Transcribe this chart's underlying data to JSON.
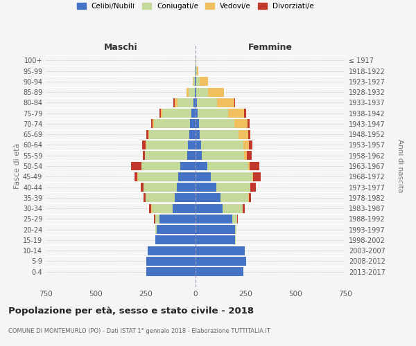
{
  "age_groups": [
    "0-4",
    "5-9",
    "10-14",
    "15-19",
    "20-24",
    "25-29",
    "30-34",
    "35-39",
    "40-44",
    "45-49",
    "50-54",
    "55-59",
    "60-64",
    "65-69",
    "70-74",
    "75-79",
    "80-84",
    "85-89",
    "90-94",
    "95-99",
    "100+"
  ],
  "birth_years": [
    "2013-2017",
    "2008-2012",
    "2003-2007",
    "1998-2002",
    "1993-1997",
    "1988-1992",
    "1983-1987",
    "1978-1982",
    "1973-1977",
    "1968-1972",
    "1963-1967",
    "1958-1962",
    "1953-1957",
    "1948-1952",
    "1943-1947",
    "1938-1942",
    "1933-1937",
    "1928-1932",
    "1923-1927",
    "1918-1922",
    "≤ 1917"
  ],
  "maschi": {
    "celibi": [
      245,
      248,
      240,
      200,
      195,
      180,
      115,
      105,
      95,
      88,
      75,
      42,
      38,
      32,
      28,
      20,
      10,
      5,
      2,
      1,
      0
    ],
    "coniugati": [
      0,
      0,
      0,
      3,
      5,
      22,
      105,
      145,
      165,
      200,
      195,
      210,
      210,
      200,
      180,
      145,
      80,
      30,
      8,
      2,
      0
    ],
    "vedovi": [
      0,
      0,
      0,
      0,
      0,
      1,
      1,
      1,
      2,
      2,
      2,
      3,
      3,
      5,
      8,
      10,
      15,
      10,
      5,
      0,
      0
    ],
    "divorziati": [
      0,
      0,
      0,
      0,
      0,
      5,
      10,
      10,
      12,
      15,
      50,
      10,
      15,
      8,
      5,
      5,
      5,
      0,
      0,
      0,
      0
    ]
  },
  "femmine": {
    "nubili": [
      240,
      252,
      248,
      198,
      198,
      185,
      135,
      125,
      105,
      78,
      58,
      32,
      28,
      22,
      18,
      12,
      8,
      5,
      3,
      2,
      0
    ],
    "coniugate": [
      0,
      0,
      0,
      3,
      8,
      22,
      100,
      140,
      168,
      205,
      205,
      210,
      210,
      195,
      175,
      152,
      98,
      58,
      18,
      5,
      0
    ],
    "vedove": [
      0,
      0,
      0,
      0,
      0,
      1,
      1,
      2,
      3,
      5,
      8,
      15,
      28,
      48,
      68,
      80,
      88,
      80,
      40,
      8,
      2
    ],
    "divorziate": [
      0,
      0,
      0,
      0,
      0,
      5,
      10,
      12,
      25,
      40,
      50,
      25,
      20,
      10,
      10,
      8,
      5,
      0,
      0,
      0,
      0
    ]
  },
  "colors": {
    "celibi": "#4472c4",
    "coniugati": "#c5d99a",
    "vedovi": "#f0c060",
    "divorziati": "#c0392b"
  },
  "xlim": 750,
  "title": "Popolazione per età, sesso e stato civile - 2018",
  "subtitle": "COMUNE DI MONTEMURLO (PO) - Dati ISTAT 1° gennaio 2018 - Elaborazione TUTTITALIA.IT",
  "ylabel": "Fasce di età",
  "ylabel_right": "Anni di nascita",
  "xlabel_maschi": "Maschi",
  "xlabel_femmine": "Femmine",
  "legend_labels": [
    "Celibi/Nubili",
    "Coniugati/e",
    "Vedovi/e",
    "Divorziati/e"
  ],
  "bg_color": "#f5f5f5",
  "grid_color": "#cccccc"
}
